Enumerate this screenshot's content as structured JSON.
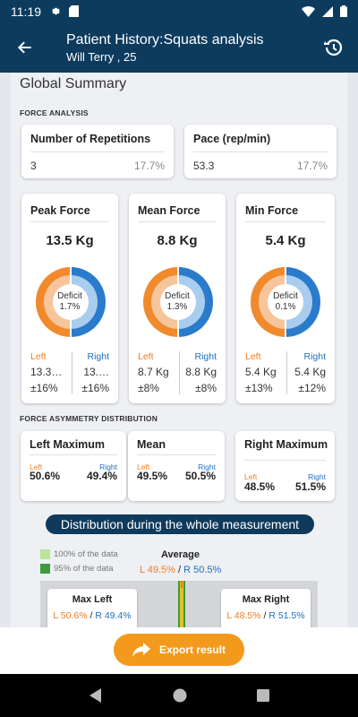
{
  "status": {
    "time": "11:19"
  },
  "appbar": {
    "title": "Patient History:Squats analysis",
    "subtitle": "Will Terry , 25"
  },
  "summary": {
    "heading": "Global Summary",
    "force_analysis_label": "FORCE ANALYSIS",
    "repetitions": {
      "title": "Number of Repetitions",
      "value": "3",
      "percent": "17.7%"
    },
    "pace": {
      "title": "Pace (rep/min)",
      "value": "53.3",
      "percent": "17.7%"
    }
  },
  "forces": [
    {
      "title": "Peak Force",
      "value": "13.5 Kg",
      "deficit_label": "Deficit",
      "deficit": "1.7%",
      "left_label": "Left",
      "right_label": "Right",
      "left_value": "13.3…",
      "right_value": "13.…",
      "left_pct": "±16%",
      "right_pct": "±16%"
    },
    {
      "title": "Mean Force",
      "value": "8.8 Kg",
      "deficit_label": "Deficit",
      "deficit": "1.3%",
      "left_label": "Left",
      "right_label": "Right",
      "left_value": "8.7 Kg",
      "right_value": "8.8 Kg",
      "left_pct": "±8%",
      "right_pct": "±8%"
    },
    {
      "title": "Min Force",
      "value": "5.4 Kg",
      "deficit_label": "Deficit",
      "deficit": "0.1%",
      "left_label": "Left",
      "right_label": "Right",
      "left_value": "5.4 Kg",
      "right_value": "5.4 Kg",
      "left_pct": "±13%",
      "right_pct": "±12%"
    }
  ],
  "asymmetry": {
    "label": "FORCE ASYMMETRY DISTRIBUTION",
    "cards": [
      {
        "title": "Left Maximum",
        "left_label": "Left",
        "right_label": "Right",
        "left": "50.6%",
        "right": "49.4%"
      },
      {
        "title": "Mean",
        "left_label": "Left",
        "right_label": "Right",
        "left": "49.5%",
        "right": "50.5%"
      },
      {
        "title": "Right Maximum",
        "left_label": "Left",
        "right_label": "Right",
        "left": "48.5%",
        "right": "51.5%"
      }
    ]
  },
  "distribution": {
    "banner": "Distribution during the whole measurement",
    "legend_100": "100% of the data",
    "legend_95": "95% of the data",
    "average_label": "Average",
    "average_left": "L 49.5%",
    "average_sep": " / ",
    "average_right": "R 50.5%",
    "max_left": {
      "title": "Max Left",
      "left": "L 50.6%",
      "sep": " / ",
      "right": "R 49.4%"
    },
    "max_right": {
      "title": "Max Right",
      "left": "L 48.5%",
      "sep": " / ",
      "right": "R 51.5%"
    }
  },
  "export": {
    "label": "Export result"
  },
  "colors": {
    "left": "#ef7d22",
    "right": "#1e6fbf",
    "primary": "#0d3b5e",
    "accent": "#f39a1c",
    "legend100": "#b7e59a",
    "legend95": "#3e9b3a"
  }
}
